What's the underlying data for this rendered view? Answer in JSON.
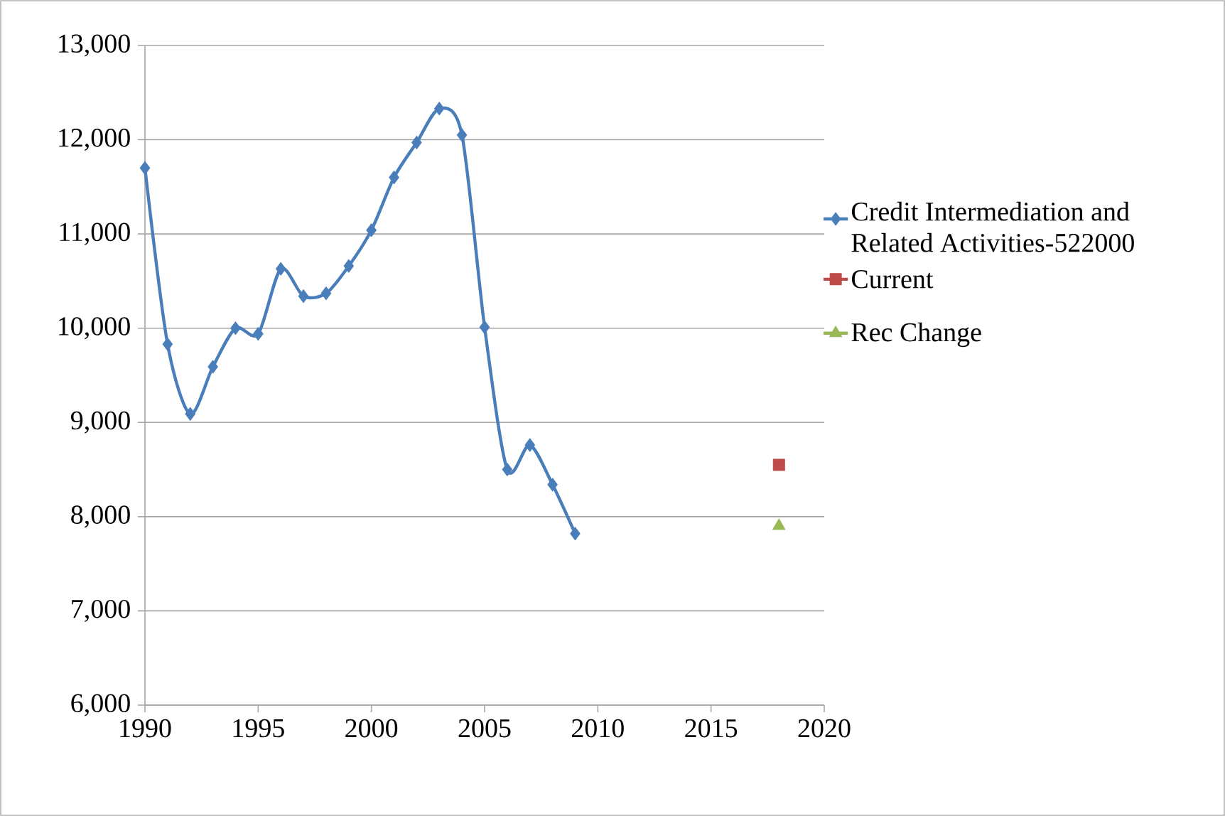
{
  "chart_data": {
    "type": "line",
    "xlim": [
      1990,
      2020
    ],
    "xticks": [
      1990,
      1995,
      2000,
      2005,
      2010,
      2015,
      2020
    ],
    "ylim": [
      6000,
      13000
    ],
    "yticks": [
      {
        "value": 6000,
        "label": "6,000"
      },
      {
        "value": 7000,
        "label": "7,000"
      },
      {
        "value": 8000,
        "label": "8,000"
      },
      {
        "value": 9000,
        "label": "9,000"
      },
      {
        "value": 10000,
        "label": "10,000"
      },
      {
        "value": 11000,
        "label": "11,000"
      },
      {
        "value": 12000,
        "label": "12,000"
      },
      {
        "value": 13000,
        "label": "13,000"
      }
    ],
    "grid": "y",
    "legend": "right",
    "series": [
      {
        "name": "Credit Intermediation and Related Activities-522000",
        "color": "#4a7ebb",
        "marker": "diamond",
        "x": [
          1990,
          1991,
          1992,
          1993,
          1994,
          1995,
          1996,
          1997,
          1998,
          1999,
          2000,
          2001,
          2002,
          2003,
          2004,
          2005,
          2006,
          2007,
          2008,
          2009
        ],
        "values": [
          11700,
          9830,
          9090,
          9590,
          10000,
          9940,
          10630,
          10340,
          10370,
          10660,
          11040,
          11600,
          11970,
          12330,
          12050,
          10010,
          8500,
          8760,
          8340,
          7820
        ]
      },
      {
        "name": "Current",
        "color": "#be4b48",
        "marker": "square",
        "x": [
          2018
        ],
        "values": [
          8550
        ]
      },
      {
        "name": "Rec Change",
        "color": "#98b954",
        "marker": "triangle",
        "x": [
          2018
        ],
        "values": [
          7900
        ]
      }
    ]
  }
}
